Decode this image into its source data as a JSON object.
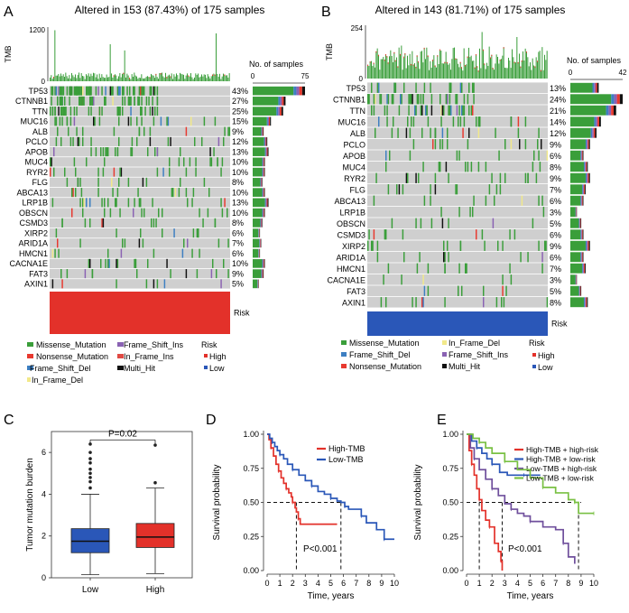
{
  "colors": {
    "missense": "#3a9e3a",
    "nonsense": "#e8392f",
    "frame_shift_del": "#3d7fc2",
    "in_frame_del": "#f2e98a",
    "frame_shift_ins": "#8a62b3",
    "in_frame_ins": "#e04a44",
    "multi_hit": "#111111",
    "bg_cell": "#cfcfcf",
    "high": "#e3312a",
    "low": "#2a57b8",
    "tmb_bar": "#3a9e3a"
  },
  "panels": {
    "A": {
      "label": "A",
      "title": "Altered in 153 (87.43%) of 175 samples"
    },
    "B": {
      "label": "B",
      "title": "Altered in 143 (81.71%) of 175 samples"
    },
    "C": {
      "label": "C"
    },
    "D": {
      "label": "D"
    },
    "E": {
      "label": "E"
    }
  },
  "legend": {
    "risk_title": "Risk",
    "high": "High",
    "low": "Low",
    "A_items": [
      "Missense_Mutation",
      "Frame_Shift_Ins",
      "Nonsense_Mutation",
      "In_Frame_Ins",
      "Frame_Shift_Del",
      "Multi_Hit",
      "In_Frame_Del"
    ],
    "B_items": [
      "Missense_Mutation",
      "In_Frame_Del",
      "Frame_Shift_Del",
      "Frame_Shift_Ins",
      "Nonsense_Mutation",
      "Multi_Hit"
    ]
  },
  "chart_data": [
    {
      "type": "heatmap",
      "panel": "A",
      "title": "Altered in 153 (87.43%) of 175 samples",
      "top_bar": {
        "ylabel": "TMB",
        "ticks": [
          0,
          1200
        ]
      },
      "side_bar": {
        "xlabel": "No. of samples",
        "ticks": [
          0,
          75
        ]
      },
      "track_label": "Risk",
      "risk_group": "High",
      "genes": [
        "TP53",
        "CTNNB1",
        "TTN",
        "MUC16",
        "ALB",
        "PCLO",
        "APOB",
        "MUC4",
        "RYR2",
        "FLG",
        "ABCA13",
        "LRP1B",
        "OBSCN",
        "CSMD3",
        "XIRP2",
        "ARID1A",
        "HMCN1",
        "CACNA1E",
        "FAT3",
        "AXIN1"
      ],
      "percent_labels": [
        "43%",
        "27%",
        "25%",
        "15%",
        "9%",
        "12%",
        "13%",
        "10%",
        "10%",
        "8%",
        "10%",
        "13%",
        "10%",
        "8%",
        "6%",
        "7%",
        "6%",
        "10%",
        "9%",
        "5%"
      ],
      "percent_values": [
        43,
        27,
        25,
        15,
        9,
        12,
        13,
        10,
        10,
        8,
        10,
        13,
        10,
        8,
        6,
        7,
        6,
        10,
        9,
        5
      ]
    },
    {
      "type": "heatmap",
      "panel": "B",
      "title": "Altered in 143 (81.71%) of 175 samples",
      "top_bar": {
        "ylabel": "TMB",
        "ticks": [
          0,
          254
        ]
      },
      "side_bar": {
        "xlabel": "No. of samples",
        "ticks": [
          0,
          42
        ]
      },
      "track_label": "Risk",
      "risk_group": "Low",
      "genes": [
        "TP53",
        "CTNNB1",
        "TTN",
        "MUC16",
        "ALB",
        "PCLO",
        "APOB",
        "MUC4",
        "RYR2",
        "FLG",
        "ABCA13",
        "LRP1B",
        "OBSCN",
        "CSMD3",
        "XIRP2",
        "ARID1A",
        "HMCN1",
        "CACNA1E",
        "FAT3",
        "AXIN1"
      ],
      "percent_labels": [
        "13%",
        "24%",
        "21%",
        "14%",
        "12%",
        "9%",
        "6%",
        "8%",
        "9%",
        "7%",
        "6%",
        "3%",
        "5%",
        "6%",
        "9%",
        "6%",
        "7%",
        "3%",
        "5%",
        "8%"
      ],
      "percent_values": [
        13,
        24,
        21,
        14,
        12,
        9,
        6,
        8,
        9,
        7,
        6,
        3,
        5,
        6,
        9,
        6,
        7,
        3,
        5,
        8
      ]
    },
    {
      "type": "box",
      "panel": "C",
      "ylabel": "Tumor mutation burden",
      "categories": [
        "Low",
        "High"
      ],
      "ylim": [
        0,
        7
      ],
      "yticks": [
        0,
        2,
        4,
        6
      ],
      "pvalue": "P=0.02",
      "boxes": [
        {
          "name": "Low",
          "min": 0.15,
          "q1": 1.2,
          "median": 1.75,
          "q3": 2.35,
          "max": 4.0,
          "outliers": [
            4.3,
            4.6,
            4.8,
            5.0,
            5.2,
            5.5,
            5.7,
            6.0,
            6.4
          ]
        },
        {
          "name": "High",
          "min": 0.2,
          "q1": 1.45,
          "median": 1.95,
          "q3": 2.6,
          "max": 4.3,
          "outliers": [
            4.55,
            6.35
          ]
        }
      ]
    },
    {
      "type": "line",
      "panel": "D",
      "xlabel": "Time, years",
      "ylabel": "Survival probability",
      "xlim": [
        0,
        10
      ],
      "ylim": [
        0,
        1
      ],
      "xticks": [
        0,
        1,
        2,
        3,
        4,
        5,
        6,
        7,
        8,
        9,
        10
      ],
      "yticks": [
        0.0,
        0.25,
        0.5,
        0.75,
        1.0
      ],
      "pvalue": "P<0.001",
      "median_lines": [
        2.3,
        5.8
      ],
      "series": [
        {
          "name": "High-TMB",
          "x": [
            0,
            0.15,
            0.3,
            0.5,
            0.7,
            0.9,
            1.1,
            1.3,
            1.5,
            1.7,
            1.9,
            2.0,
            2.2,
            2.3,
            2.45,
            2.6,
            5.5
          ],
          "y": [
            1.0,
            0.96,
            0.9,
            0.84,
            0.78,
            0.73,
            0.68,
            0.64,
            0.6,
            0.57,
            0.54,
            0.5,
            0.46,
            0.43,
            0.38,
            0.34,
            0.34
          ]
        },
        {
          "name": "Low-TMB",
          "x": [
            0,
            0.2,
            0.4,
            0.6,
            0.8,
            1.0,
            1.3,
            1.6,
            2.0,
            2.5,
            3.0,
            3.5,
            4.0,
            4.5,
            5.0,
            5.5,
            5.8,
            6.1,
            6.4,
            7.0,
            7.4,
            7.8,
            8.6,
            9.2,
            10.0
          ],
          "y": [
            1.0,
            0.97,
            0.94,
            0.91,
            0.88,
            0.85,
            0.82,
            0.78,
            0.74,
            0.7,
            0.66,
            0.62,
            0.58,
            0.56,
            0.53,
            0.51,
            0.5,
            0.47,
            0.45,
            0.45,
            0.4,
            0.35,
            0.3,
            0.23,
            0.23
          ]
        }
      ]
    },
    {
      "type": "line",
      "panel": "E",
      "xlabel": "Time, years",
      "ylabel": "Survival probability",
      "xlim": [
        0,
        10
      ],
      "ylim": [
        0,
        1
      ],
      "xticks": [
        0,
        1,
        2,
        3,
        4,
        5,
        6,
        7,
        8,
        9,
        10
      ],
      "yticks": [
        0.0,
        0.25,
        0.5,
        0.75,
        1.0
      ],
      "pvalue": "P<0.001",
      "median_lines": [
        1.0,
        2.8,
        8.8
      ],
      "series": [
        {
          "name": "High-TMB + high-risk",
          "x": [
            0,
            0.2,
            0.4,
            0.6,
            0.8,
            1.0,
            1.2,
            1.5,
            1.8,
            2.2,
            2.5,
            2.7,
            2.8
          ],
          "y": [
            1.0,
            0.88,
            0.78,
            0.7,
            0.6,
            0.52,
            0.44,
            0.37,
            0.32,
            0.2,
            0.14,
            0.07,
            0.0
          ]
        },
        {
          "name": "High-TMB + low-risk",
          "x": [
            0,
            0.4,
            0.8,
            1.2,
            1.6,
            2.0,
            2.6,
            3.2,
            4.5,
            5.5,
            5.8
          ],
          "y": [
            1.0,
            0.95,
            0.9,
            0.86,
            0.82,
            0.78,
            0.72,
            0.7,
            0.7,
            0.7,
            0.7
          ]
        },
        {
          "name": "Low-TMB + high-risk",
          "x": [
            0,
            0.3,
            0.6,
            1.0,
            1.5,
            2.0,
            2.5,
            3.0,
            3.5,
            4.0,
            4.5,
            5.0,
            6.0,
            7.0,
            7.6,
            8.0,
            8.5
          ],
          "y": [
            1.0,
            0.9,
            0.82,
            0.74,
            0.67,
            0.6,
            0.55,
            0.49,
            0.45,
            0.42,
            0.4,
            0.36,
            0.32,
            0.3,
            0.2,
            0.1,
            0.05
          ]
        },
        {
          "name": "Low-TMB + low-risk",
          "x": [
            0,
            0.5,
            1.0,
            1.5,
            2.0,
            3.0,
            4.0,
            5.0,
            6.0,
            7.0,
            8.0,
            8.5,
            8.8,
            9.0,
            10.0
          ],
          "y": [
            1.0,
            0.97,
            0.94,
            0.9,
            0.86,
            0.8,
            0.74,
            0.68,
            0.61,
            0.57,
            0.52,
            0.5,
            0.42,
            0.42,
            0.42
          ]
        }
      ]
    }
  ]
}
